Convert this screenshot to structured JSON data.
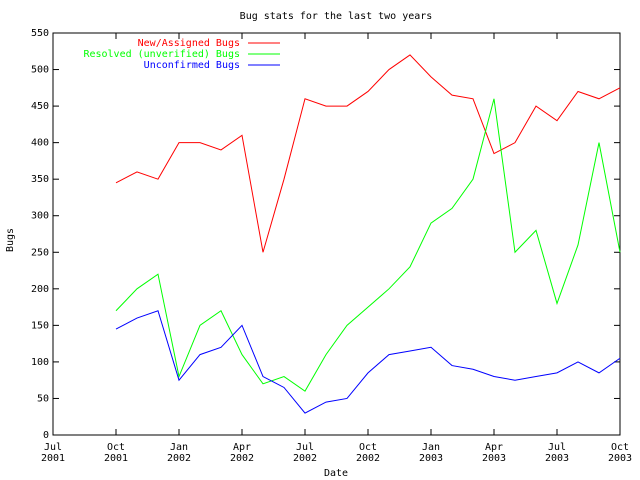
{
  "chart_data": {
    "type": "line",
    "title": "Bug stats for the last two years",
    "xlabel": "Date",
    "ylabel": "Bugs",
    "x": [
      "2001-10",
      "2001-11",
      "2001-12",
      "2002-01",
      "2002-02",
      "2002-03",
      "2002-04",
      "2002-05",
      "2002-06",
      "2002-07",
      "2002-08",
      "2002-09",
      "2002-10",
      "2002-11",
      "2002-12",
      "2003-01",
      "2003-02",
      "2003-03",
      "2003-04",
      "2003-05",
      "2003-06",
      "2003-07",
      "2003-08",
      "2003-09",
      "2003-10"
    ],
    "series": [
      {
        "name": "New/Assigned Bugs",
        "color": "#ff0000",
        "values": [
          345,
          360,
          350,
          400,
          400,
          390,
          410,
          250,
          350,
          460,
          450,
          450,
          470,
          500,
          520,
          490,
          465,
          460,
          385,
          400,
          450,
          430,
          470,
          460,
          475
        ]
      },
      {
        "name": "Resolved (unverified) Bugs",
        "color": "#00ff00",
        "values": [
          170,
          200,
          220,
          80,
          150,
          170,
          110,
          70,
          80,
          60,
          110,
          150,
          175,
          200,
          230,
          290,
          310,
          350,
          460,
          250,
          280,
          180,
          260,
          400,
          250
        ]
      },
      {
        "name": "Unconfirmed Bugs",
        "color": "#0000ff",
        "values": [
          145,
          160,
          170,
          75,
          110,
          120,
          150,
          80,
          65,
          30,
          45,
          50,
          85,
          110,
          115,
          120,
          95,
          90,
          80,
          75,
          80,
          85,
          100,
          85,
          105
        ]
      }
    ],
    "xlim": [
      "2001-07",
      "2003-10"
    ],
    "xticks": [
      {
        "value": "2001-07",
        "label": "Jul 2001"
      },
      {
        "value": "2001-10",
        "label": "Oct 2001"
      },
      {
        "value": "2002-01",
        "label": "Jan 2002"
      },
      {
        "value": "2002-04",
        "label": "Apr 2002"
      },
      {
        "value": "2002-07",
        "label": "Jul 2002"
      },
      {
        "value": "2002-10",
        "label": "Oct 2002"
      },
      {
        "value": "2003-01",
        "label": "Jan 2003"
      },
      {
        "value": "2003-04",
        "label": "Apr 2003"
      },
      {
        "value": "2003-07",
        "label": "Jul 2003"
      },
      {
        "value": "2003-10",
        "label": "Oct 2003"
      }
    ],
    "ylim": [
      0,
      550
    ],
    "yticks": [
      0,
      50,
      100,
      150,
      200,
      250,
      300,
      350,
      400,
      450,
      500,
      550
    ],
    "legend": "top"
  }
}
